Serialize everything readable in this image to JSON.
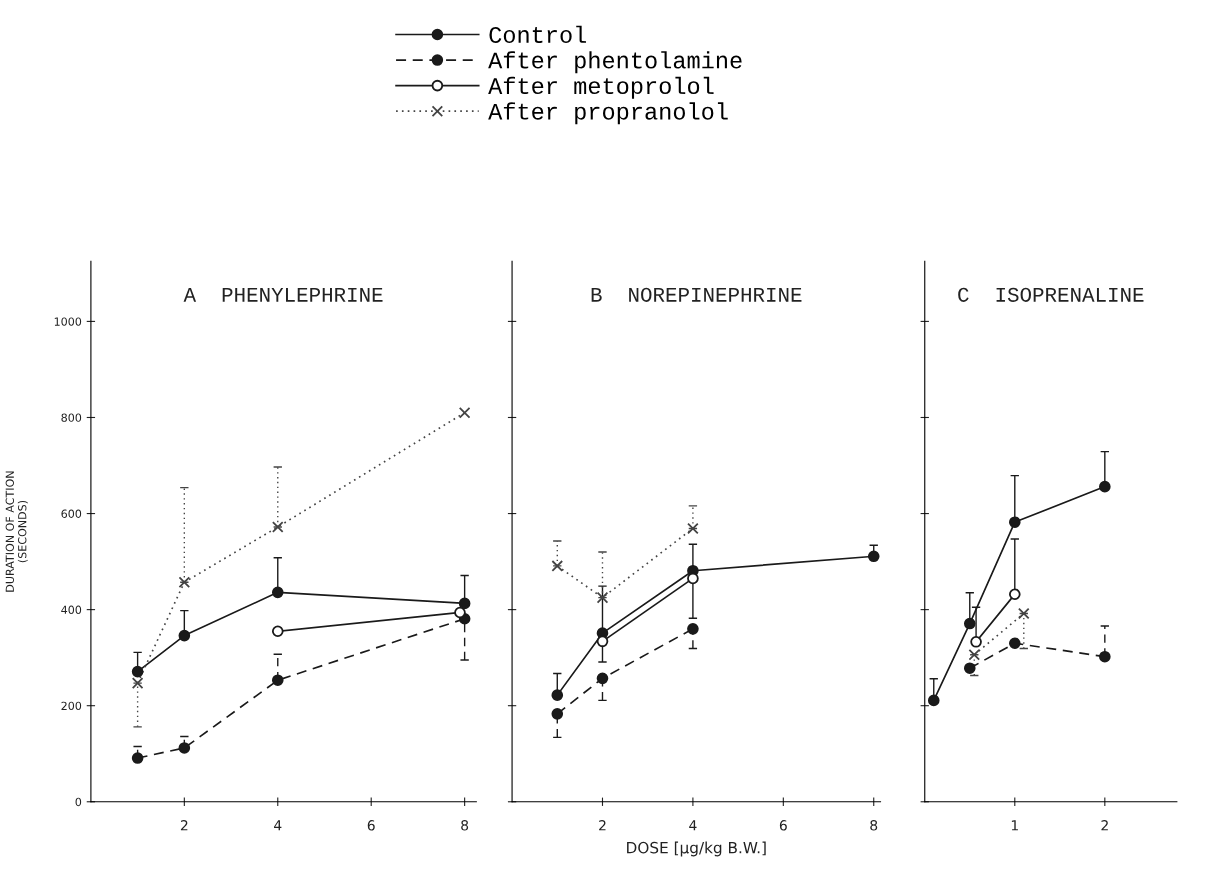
{
  "chart_data": [
    {
      "type": "line",
      "title": "A  PHENYLEPHRINE",
      "ylabel": "DURATION OF ACTION\n(SECONDS)",
      "xlim": [
        0,
        8.25
      ],
      "xticks": [
        2,
        4,
        6,
        8
      ],
      "ylim": [
        0,
        1125
      ],
      "yticks": [
        0,
        200,
        400,
        600,
        800,
        1000
      ],
      "legend": "top",
      "series": [
        {
          "name": "Control",
          "color": "#1a1a1a",
          "marker": "circle",
          "line_style": "solid",
          "x": [
            1,
            2,
            4,
            8
          ],
          "values": [
            271,
            346,
            436,
            413
          ],
          "errors": [
            [
              271,
              311
            ],
            [
              346,
              398
            ],
            [
              436,
              508
            ],
            [
              413,
              471
            ]
          ]
        },
        {
          "name": "After phentolamine",
          "color": "#1a1a1a",
          "marker": "circle",
          "line_style": "dashed",
          "x": [
            1,
            2,
            4,
            8
          ],
          "values": [
            91,
            112,
            253,
            381
          ],
          "errors": [
            [
              91,
              115
            ],
            [
              112,
              136
            ],
            [
              253,
              307
            ],
            [
              295,
              381
            ]
          ]
        },
        {
          "name": "After metoprolol",
          "color": "#1a1a1a",
          "colors": [
            "#ffffff",
            "#ffffff"
          ],
          "marker": "circle",
          "line_style": "solid",
          "x": [
            4,
            7.9
          ],
          "values": [
            355,
            394
          ]
        },
        {
          "name": "After propranolol",
          "color": "#444444",
          "marker": "cross",
          "line_style": "dotted",
          "x": [
            1,
            2,
            4,
            8
          ],
          "values": [
            247,
            457,
            572,
            810
          ],
          "errors": [
            [
              156,
              247
            ],
            [
              457,
              654
            ],
            [
              572,
              697
            ],
            null
          ]
        }
      ]
    },
    {
      "type": "line",
      "title": "B  NOREPINEPHRINE",
      "xlabel": "DOSE [µg/kg B.W.]",
      "xlim": [
        0,
        8.15
      ],
      "xticks": [
        2,
        4,
        6,
        8
      ],
      "ylim": [
        0,
        1125
      ],
      "yticks": [
        0,
        200,
        400,
        600,
        800,
        1000
      ],
      "tick_labels": "x",
      "series": [
        {
          "color": "#1a1a1a",
          "marker": "circle",
          "line_style": "solid",
          "x": [
            1,
            2,
            4,
            8
          ],
          "values": [
            222,
            351,
            481,
            511
          ],
          "errors": [
            [
              222,
              267
            ],
            [
              351,
              449
            ],
            [
              481,
              536
            ],
            [
              511,
              534
            ]
          ]
        },
        {
          "color": "#1a1a1a",
          "marker": "circle",
          "line_style": "dashed",
          "x": [
            1,
            2,
            4
          ],
          "values": [
            183,
            257,
            360
          ],
          "errors": [
            [
              134,
              183
            ],
            [
              211,
              257
            ],
            [
              319,
              360
            ]
          ]
        },
        {
          "color": "#1a1a1a",
          "colors": [
            "#ffffff",
            "#ffffff"
          ],
          "marker": "circle",
          "line_style": "solid",
          "x": [
            2,
            4
          ],
          "values": [
            334,
            465
          ],
          "errors": [
            [
              291,
              334
            ],
            [
              382,
              465
            ]
          ]
        },
        {
          "color": "#444444",
          "marker": "cross",
          "line_style": "dotted",
          "x": [
            1,
            2,
            4
          ],
          "values": [
            491,
            425,
            569
          ],
          "errors": [
            [
              491,
              543
            ],
            [
              425,
              520
            ],
            [
              569,
              616
            ]
          ]
        }
      ]
    },
    {
      "type": "line",
      "title": "C  ISOPRENALINE",
      "xlim": [
        0,
        2.8
      ],
      "xticks": [
        1,
        2
      ],
      "ylim": [
        0,
        1125
      ],
      "yticks": [
        0,
        200,
        400,
        600,
        800,
        1000
      ],
      "tick_labels": "x",
      "series": [
        {
          "color": "#1a1a1a",
          "marker": "circle",
          "line_style": "solid",
          "x": [
            0.1,
            0.5,
            1,
            2
          ],
          "values": [
            211,
            371,
            582,
            656
          ],
          "errors": [
            [
              211,
              256
            ],
            [
              371,
              435
            ],
            [
              582,
              679
            ],
            [
              656,
              729
            ]
          ]
        },
        {
          "color": "#1a1a1a",
          "marker": "circle",
          "line_style": "dashed",
          "x": [
            0.5,
            1,
            2
          ],
          "values": [
            278,
            330,
            302
          ],
          "errors": [
            null,
            null,
            [
              302,
              366
            ]
          ]
        },
        {
          "color": "#1a1a1a",
          "colors": [
            "#ffffff",
            "#ffffff"
          ],
          "marker": "circle",
          "line_style": "solid",
          "x": [
            0.57,
            1
          ],
          "values": [
            333,
            432
          ],
          "errors": [
            [
              333,
              405
            ],
            [
              432,
              547
            ]
          ]
        },
        {
          "color": "#444444",
          "marker": "cross",
          "line_style": "dotted",
          "x": [
            0.55,
            1.1
          ],
          "values": [
            306,
            392
          ],
          "errors": [
            [
              263,
              306
            ],
            [
              319,
              392
            ]
          ]
        }
      ]
    }
  ]
}
